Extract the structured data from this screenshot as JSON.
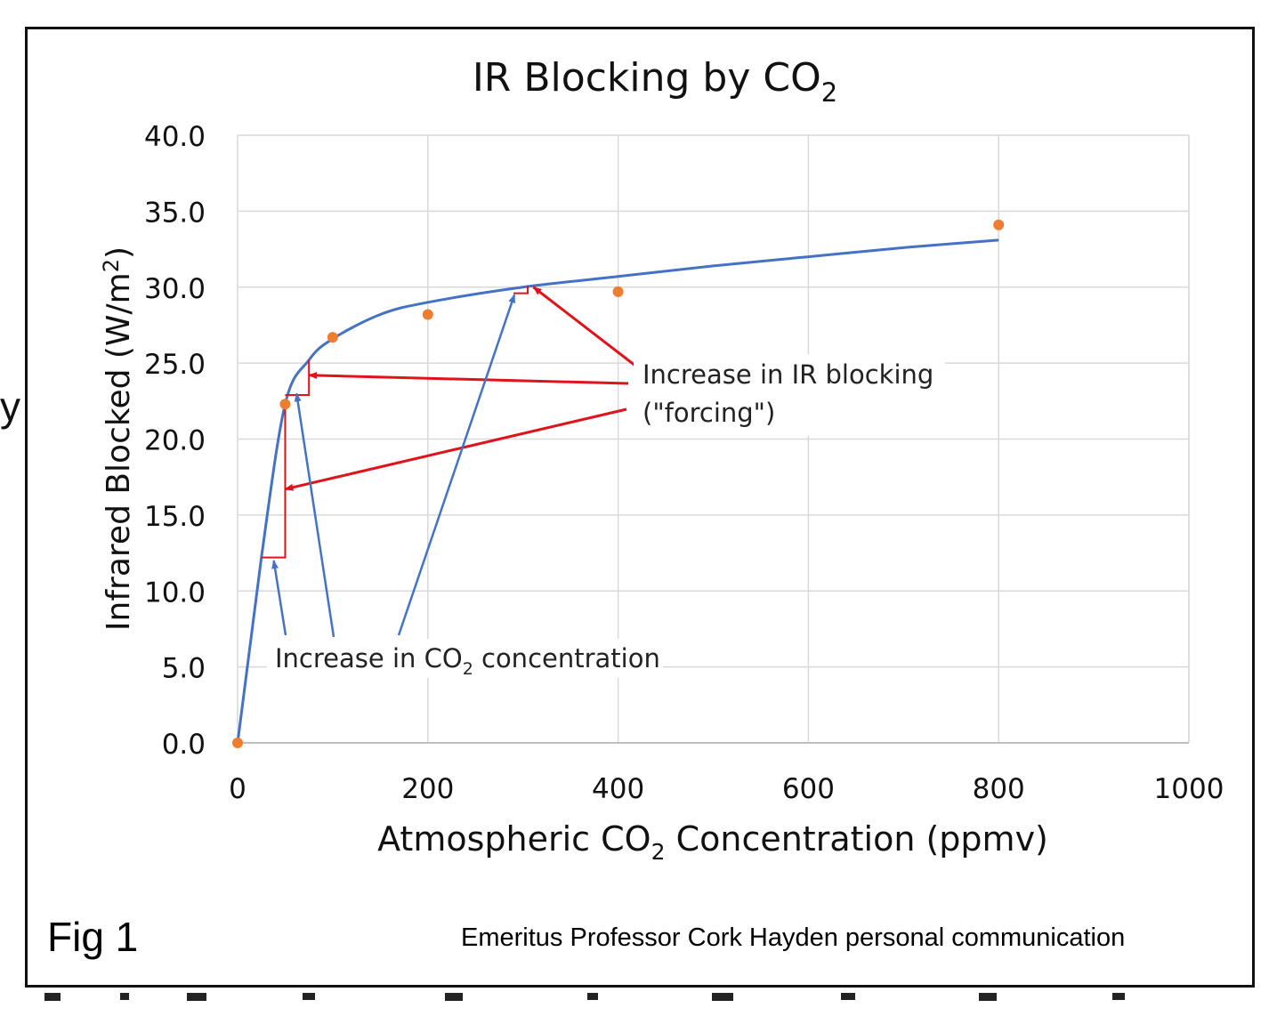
{
  "stray_glyph": "y",
  "figure_label": "Fig 1",
  "credit": "Emeritus Professor Cork Hayden personal communication",
  "chart_data": {
    "type": "scatter",
    "title": "IR Blocking by CO",
    "title_subscript": "2",
    "xlabel_prefix": "Atmospheric CO",
    "xlabel_subscript": "2",
    "xlabel_suffix": " Concentration (ppmv)",
    "ylabel_prefix": "Infrared Blocked (W/m",
    "ylabel_superscript": "2",
    "ylabel_suffix": ")",
    "xlim": [
      0,
      1000
    ],
    "ylim": [
      0,
      40
    ],
    "x_ticks": [
      "0",
      "200",
      "400",
      "600",
      "800",
      "1000"
    ],
    "y_ticks": [
      "0.0",
      "5.0",
      "10.0",
      "15.0",
      "20.0",
      "25.0",
      "30.0",
      "35.0",
      "40.0"
    ],
    "grid": true,
    "legend": "none",
    "series": [
      {
        "kind": "points",
        "color": "#ed7d31",
        "points": [
          [
            0,
            0
          ],
          [
            50,
            22.3
          ],
          [
            100,
            26.7
          ],
          [
            200,
            28.2
          ],
          [
            400,
            29.7
          ],
          [
            800,
            34.1
          ]
        ]
      },
      {
        "kind": "fit-curve",
        "color": "#4472c4",
        "points": [
          [
            0,
            0
          ],
          [
            25,
            12.2
          ],
          [
            50,
            22.3
          ],
          [
            75,
            25.2
          ],
          [
            100,
            26.6
          ],
          [
            150,
            28.2
          ],
          [
            200,
            29.0
          ],
          [
            300,
            30.0
          ],
          [
            400,
            30.7
          ],
          [
            500,
            31.4
          ],
          [
            600,
            32.0
          ],
          [
            700,
            32.6
          ],
          [
            800,
            33.1
          ]
        ]
      }
    ],
    "forcing_steps": [
      {
        "x1": 25,
        "y1": 12.2,
        "x2": 50,
        "y2": 22.3
      },
      {
        "x1": 50,
        "y1": 22.9,
        "x2": 75,
        "y2": 25.2
      },
      {
        "x1": 290,
        "y1": 29.6,
        "x2": 305,
        "y2": 30.1
      }
    ],
    "annotations": [
      {
        "id": "ir-blocking",
        "lines": [
          "Increase in IR blocking",
          "(\"forcing\")"
        ],
        "color": "#e0121a",
        "anchor": [
          425,
          24.6
        ],
        "targets": [
          [
            311,
            30.0
          ],
          [
            75,
            24.2
          ],
          [
            50,
            16.7
          ]
        ]
      },
      {
        "id": "co2-increase",
        "text_prefix": "Increase in CO",
        "text_subscript": "2",
        "text_suffix": " concentration",
        "color": "#4472c4",
        "anchor": [
          20,
          7.0
        ],
        "targets": [
          [
            38,
            12.0
          ],
          [
            62,
            23.0
          ],
          [
            291,
            29.5
          ]
        ]
      }
    ]
  }
}
